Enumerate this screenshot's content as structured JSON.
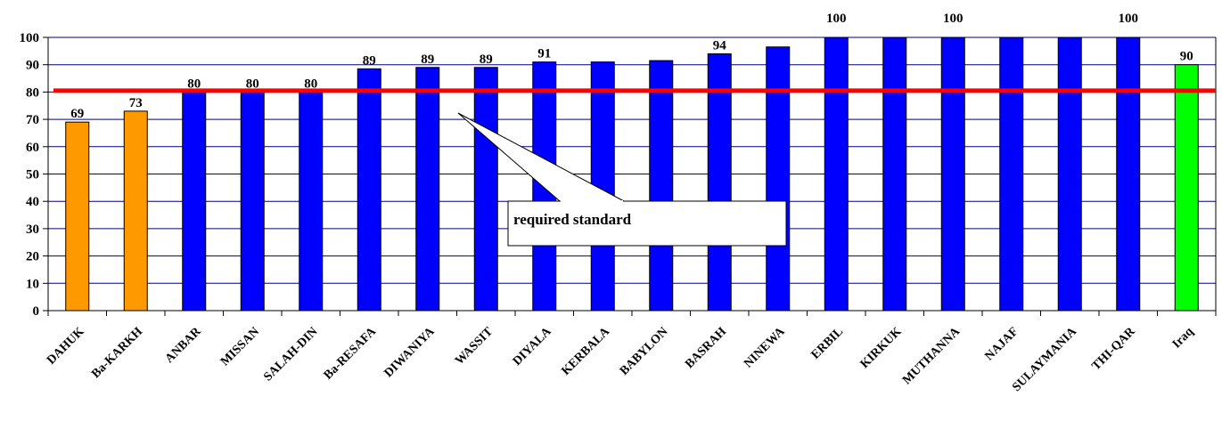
{
  "chart_data": {
    "type": "bar",
    "title": "",
    "xlabel": "",
    "ylabel": "",
    "ylim": [
      0,
      100
    ],
    "yticks": [
      0,
      10,
      20,
      30,
      40,
      50,
      60,
      70,
      80,
      90,
      100
    ],
    "grid": true,
    "categories": [
      "DAHUK",
      "Ba-KARKH",
      "ANBAR",
      "MISSAN",
      "SALAH-DIN",
      "Ba-RESAFA",
      "DIWANIYA",
      "WASSIT",
      "DIYALA",
      "KERBALA",
      "BABYLON",
      "BASRAH",
      "NINEWA",
      "ERBIL",
      "KIRKUK",
      "MUTHANNA",
      "NAJAF",
      "SULAYMANIA",
      "THI-QAR",
      "Iraq"
    ],
    "values": [
      69,
      73,
      80,
      80,
      80,
      88.5,
      89,
      89,
      91,
      91,
      91.5,
      94,
      96.5,
      100,
      100,
      100,
      100,
      100,
      100,
      90
    ],
    "data_labels": [
      "69",
      "73",
      "80",
      "80",
      "80",
      "89",
      "89",
      "89",
      "91",
      "",
      "",
      "94",
      "",
      "100",
      "",
      "100",
      "",
      "",
      "100",
      "90"
    ],
    "bar_colors": [
      "#ff9900",
      "#ff9900",
      "#0000ff",
      "#0000ff",
      "#0000ff",
      "#0000ff",
      "#0000ff",
      "#0000ff",
      "#0000ff",
      "#0000ff",
      "#0000ff",
      "#0000ff",
      "#0000ff",
      "#0000ff",
      "#0000ff",
      "#0000ff",
      "#0000ff",
      "#0000ff",
      "#0000ff",
      "#00ff00"
    ],
    "reference_line": {
      "value": 80.5,
      "color": "#ff0000"
    },
    "annotation": {
      "text": "required standard",
      "points_to_category": "WASSIT"
    },
    "colors": {
      "grid": "#000080",
      "axis": "#000000"
    }
  }
}
